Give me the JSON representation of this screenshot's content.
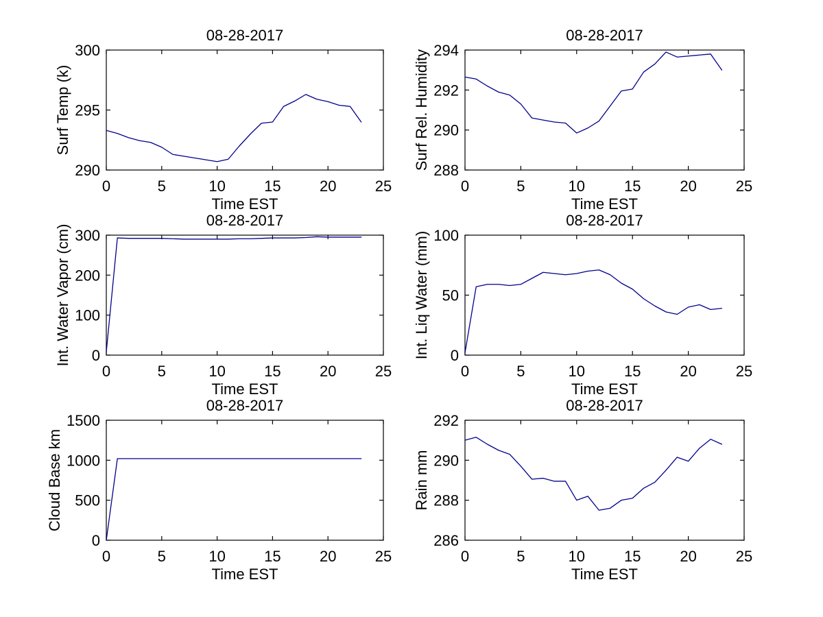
{
  "figure": {
    "background": "#ffffff",
    "axis_color": "#000000",
    "line_color": "#00008B",
    "date_title": "08-28-2017"
  },
  "chart_data": [
    {
      "type": "line",
      "title": "08-28-2017",
      "xlabel": "Time EST",
      "ylabel": "Surf Temp (k)",
      "xlim": [
        0,
        25
      ],
      "ylim": [
        290,
        300
      ],
      "xticks": [
        0,
        5,
        10,
        15,
        20,
        25
      ],
      "yticks": [
        290,
        295,
        300
      ],
      "grid": false,
      "x": [
        0,
        1,
        2,
        3,
        4,
        5,
        6,
        7,
        8,
        9,
        10,
        11,
        12,
        13,
        14,
        15,
        16,
        17,
        18,
        19,
        20,
        21,
        22,
        23
      ],
      "values": [
        293.3,
        293.05,
        292.7,
        292.45,
        292.3,
        291.9,
        291.3,
        291.15,
        291.0,
        290.85,
        290.7,
        290.9,
        292.0,
        293.0,
        293.9,
        294.0,
        295.3,
        295.75,
        296.3,
        295.9,
        295.7,
        295.4,
        295.3,
        294.0
      ]
    },
    {
      "type": "line",
      "title": "08-28-2017",
      "xlabel": "Time EST",
      "ylabel": "Surf Rel. Humidity",
      "xlim": [
        0,
        25
      ],
      "ylim": [
        288,
        294
      ],
      "xticks": [
        0,
        5,
        10,
        15,
        20,
        25
      ],
      "yticks": [
        288,
        290,
        292,
        294
      ],
      "grid": false,
      "x": [
        0,
        1,
        2,
        3,
        4,
        5,
        6,
        7,
        8,
        9,
        10,
        11,
        12,
        13,
        14,
        15,
        16,
        17,
        18,
        19,
        20,
        21,
        22,
        23
      ],
      "values": [
        292.65,
        292.55,
        292.2,
        291.9,
        291.75,
        291.3,
        290.6,
        290.5,
        290.4,
        290.35,
        289.85,
        290.1,
        290.45,
        291.2,
        291.95,
        292.05,
        292.9,
        293.3,
        293.9,
        293.65,
        293.7,
        293.75,
        293.8,
        293.0
      ]
    },
    {
      "type": "line",
      "title": "08-28-2017",
      "xlabel": "Time EST",
      "ylabel": "Int. Water Vapor (cm)",
      "xlim": [
        0,
        25
      ],
      "ylim": [
        0,
        300
      ],
      "xticks": [
        0,
        5,
        10,
        15,
        20,
        25
      ],
      "yticks": [
        0,
        100,
        200,
        300
      ],
      "grid": false,
      "x": [
        0,
        1,
        2,
        3,
        4,
        5,
        6,
        7,
        8,
        9,
        10,
        11,
        12,
        13,
        14,
        15,
        16,
        17,
        18,
        19,
        20,
        21,
        22,
        23
      ],
      "values": [
        8,
        293,
        292,
        292,
        292,
        292,
        291,
        290,
        290,
        290,
        290,
        290,
        291,
        291,
        292,
        293,
        293,
        293,
        294,
        296,
        295,
        295,
        295,
        295
      ]
    },
    {
      "type": "line",
      "title": "08-28-2017",
      "xlabel": "Time EST",
      "ylabel": "Int. Liq Water (mm)",
      "xlim": [
        0,
        25
      ],
      "ylim": [
        0,
        100
      ],
      "xticks": [
        0,
        5,
        10,
        15,
        20,
        25
      ],
      "yticks": [
        0,
        50,
        100
      ],
      "grid": false,
      "x": [
        0,
        1,
        2,
        3,
        4,
        5,
        6,
        7,
        8,
        9,
        10,
        11,
        12,
        13,
        14,
        15,
        16,
        17,
        18,
        19,
        20,
        21,
        22,
        23
      ],
      "values": [
        2,
        57,
        59,
        59,
        58,
        59,
        64,
        69,
        68,
        67,
        68,
        70,
        71,
        67,
        60,
        55,
        47,
        41,
        36,
        34,
        40,
        42,
        38,
        39
      ]
    },
    {
      "type": "line",
      "title": "08-28-2017",
      "xlabel": "Time EST",
      "ylabel": "Cloud Base km",
      "xlim": [
        0,
        25
      ],
      "ylim": [
        0,
        1500
      ],
      "xticks": [
        0,
        5,
        10,
        15,
        20,
        25
      ],
      "yticks": [
        0,
        500,
        1000,
        1500
      ],
      "grid": false,
      "x": [
        0,
        1,
        2,
        3,
        4,
        5,
        6,
        7,
        8,
        9,
        10,
        11,
        12,
        13,
        14,
        15,
        16,
        17,
        18,
        19,
        20,
        21,
        22,
        23
      ],
      "values": [
        0,
        1020,
        1020,
        1020,
        1020,
        1020,
        1020,
        1020,
        1020,
        1020,
        1020,
        1020,
        1020,
        1020,
        1020,
        1020,
        1020,
        1020,
        1020,
        1020,
        1020,
        1020,
        1020,
        1020
      ]
    },
    {
      "type": "line",
      "title": "08-28-2017",
      "xlabel": "Time EST",
      "ylabel": "Rain mm",
      "xlim": [
        0,
        25
      ],
      "ylim": [
        286,
        292
      ],
      "xticks": [
        0,
        5,
        10,
        15,
        20,
        25
      ],
      "yticks": [
        286,
        288,
        290,
        292
      ],
      "grid": false,
      "x": [
        0,
        1,
        2,
        3,
        4,
        5,
        6,
        7,
        8,
        9,
        10,
        11,
        12,
        13,
        14,
        15,
        16,
        17,
        18,
        19,
        20,
        21,
        22,
        23
      ],
      "values": [
        291.0,
        291.15,
        290.8,
        290.5,
        290.3,
        289.7,
        289.05,
        289.1,
        288.95,
        288.95,
        288.0,
        288.2,
        287.5,
        287.6,
        288.0,
        288.1,
        288.6,
        288.9,
        289.5,
        290.15,
        289.95,
        290.6,
        291.05,
        290.8
      ]
    }
  ]
}
